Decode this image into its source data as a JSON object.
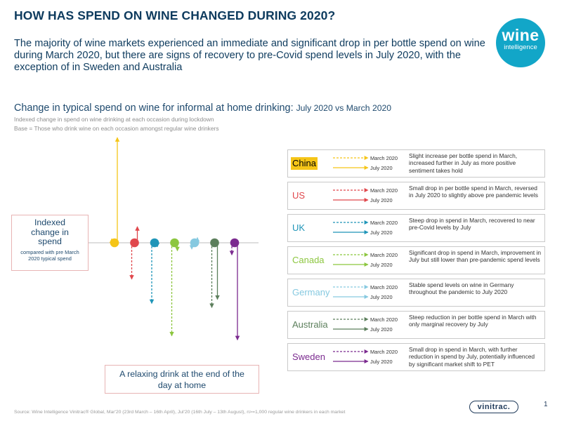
{
  "title": "HOW HAS SPEND ON WINE CHANGED DURING 2020?",
  "lead": "The majority of wine markets experienced an immediate and significant drop in per bottle spend on wine during March 2020, but there are signs of recovery to pre-Covid spend levels in July 2020, with the exception of in Sweden and Australia",
  "logo": {
    "line1": "wine",
    "line2": "intelligence",
    "color": "#12a6c8"
  },
  "subtitle": {
    "main": "Change in typical spend on wine for informal at home drinking:",
    "rest": "July 2020 vs March 2020"
  },
  "note1": "Indexed change in spend on wine drinking at each occasion during lockdown",
  "note2": "Base = Those who drink wine on each occasion amongst regular wine drinkers",
  "index_box": {
    "line1": "Indexed",
    "line2": "change in",
    "line3": "spend",
    "small": "compared with pre March 2020 typical spend"
  },
  "caption_box": {
    "line1": "A relaxing drink at the end of the",
    "line2": "day at home"
  },
  "legend_line_labels": {
    "march": "March 2020",
    "july": "July 2020"
  },
  "chart_data": {
    "type": "line",
    "title": "Change in typical spend on wine for informal at home drinking: July 2020 vs March 2020",
    "baseline_label": "Indexed change in spend compared with pre March 2020 typical spend",
    "series": [
      {
        "name": "China",
        "color": "#f5c518",
        "march": 1,
        "july": 26,
        "description": "Slight increase per bottle spend in March, increased further in July as more positive sentiment takes hold",
        "highlight": true
      },
      {
        "name": "US",
        "color": "#e0474c",
        "march": -9,
        "july": 4,
        "description": "Small drop in per bottle spend in March, reversed in July 2020 to slightly above pre pandemic levels",
        "highlight": false
      },
      {
        "name": "UK",
        "color": "#1f95b8",
        "march": -15,
        "july": -1,
        "description": "Steep drop in spend in March, recovered to near pre-Covid levels by July",
        "highlight": false
      },
      {
        "name": "Canada",
        "color": "#8cc63f",
        "march": -23,
        "july": -2,
        "description": "Significant drop in spend in March, improvement in July but still lower than pre-pandemic spend levels",
        "highlight": false
      },
      {
        "name": "Germany",
        "color": "#86c9e0",
        "march": -1.6,
        "july": 1.3,
        "description": "Stable spend levels on wine in Germany throughout the pandemic to July 2020",
        "highlight": false
      },
      {
        "name": "Australia",
        "color": "#5c7f5c",
        "march": -16,
        "july": -14,
        "description": "Steep reduction in per bottle spend in March with only marginal recovery by July",
        "highlight": false
      },
      {
        "name": "Sweden",
        "color": "#7b2a8f",
        "march": -3,
        "july": -24,
        "description": "Small drop in spend in March, with further reduction in spend by July, potentially influenced by significant market shift to PET",
        "highlight": false
      }
    ],
    "ylim": [
      -26,
      28
    ]
  },
  "source": "Source: Wine Intelligence Vinitrac® Global, Mar'20 (23rd March – 16th April), Jul'20 (16th July – 13th August), n>=1,000 regular wine drinkers in each market",
  "brand": "vinitrac.",
  "page_number": "1"
}
